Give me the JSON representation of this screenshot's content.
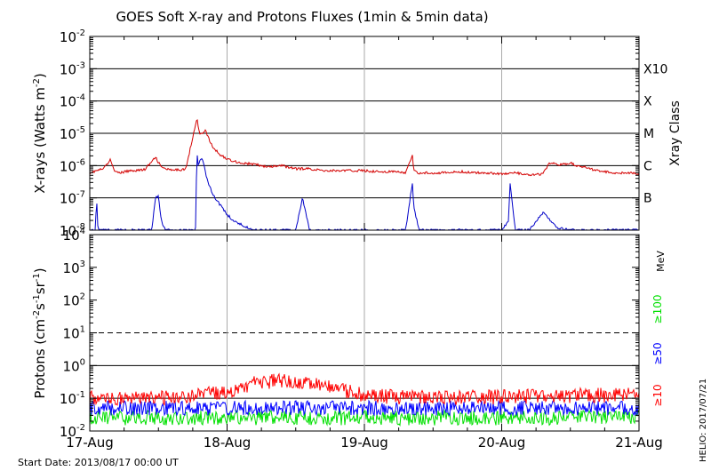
{
  "title": "GOES Soft X-ray and Protons Fluxes   (1min & 5min data)",
  "footer": {
    "start_date": "Start Date: 2013/08/17 00:00 UT",
    "stamp": "HELIO: 2017/07/21"
  },
  "chart_data": [
    {
      "type": "line",
      "panel": "xrays",
      "ylabel": "X-rays (Watts m",
      "ylabel_sup": "-2",
      "ylabel_close": ")",
      "yscale": "log",
      "ylim": [
        1e-08,
        0.01
      ],
      "xlim": [
        "2013-08-17",
        "2013-08-21"
      ],
      "yticks": [
        {
          "base": "10",
          "exp": "-2",
          "value": 0.01
        },
        {
          "base": "10",
          "exp": "-3",
          "value": 0.001
        },
        {
          "base": "10",
          "exp": "-4",
          "value": 0.0001
        },
        {
          "base": "10",
          "exp": "-5",
          "value": 1e-05
        },
        {
          "base": "10",
          "exp": "-6",
          "value": 1e-06
        },
        {
          "base": "10",
          "exp": "-7",
          "value": 1e-07
        },
        {
          "base": "10",
          "exp": "-8",
          "value": 1e-08
        }
      ],
      "gridlines": [
        0.001,
        0.0001,
        1e-05,
        1e-06,
        1e-07
      ],
      "right_axis_title": "Xray Class",
      "right_labels": [
        {
          "label": "X10",
          "value": 0.001
        },
        {
          "label": "X",
          "value": 0.0001
        },
        {
          "label": "M",
          "value": 1e-05
        },
        {
          "label": "C",
          "value": 1e-06
        },
        {
          "label": "B",
          "value": 1e-07
        }
      ],
      "series": [
        {
          "color": "#d40000",
          "x": [
            0,
            0.1,
            0.15,
            0.19,
            0.22,
            0.3,
            0.4,
            0.48,
            0.52,
            0.55,
            0.6,
            0.7,
            0.78,
            0.8,
            0.82,
            0.84,
            0.86,
            0.88,
            0.9,
            0.95,
            1.0,
            1.1,
            1.2,
            1.3,
            1.4,
            1.5,
            1.6,
            1.7,
            1.8,
            1.9,
            2.0,
            2.1,
            2.2,
            2.3,
            2.35,
            2.36,
            2.38,
            2.5,
            2.6,
            2.7,
            2.8,
            2.9,
            3.0,
            3.1,
            3.2,
            3.3,
            3.35,
            3.4,
            3.45,
            3.5,
            3.55,
            3.6,
            3.7,
            3.8,
            3.9,
            4.0
          ],
          "y": [
            6e-07,
            8e-07,
            1.5e-06,
            6e-07,
            6e-07,
            7e-07,
            7.5e-07,
            1.8e-06,
            9e-07,
            8e-07,
            7e-07,
            8e-07,
            3e-05,
            9e-06,
            1e-05,
            1.3e-05,
            8e-06,
            5e-06,
            3.5e-06,
            2.2e-06,
            1.6e-06,
            1.2e-06,
            1.1e-06,
            9e-07,
            1e-06,
            8e-07,
            8e-07,
            7e-07,
            7e-07,
            7e-07,
            7e-07,
            6.5e-07,
            6.5e-07,
            6e-07,
            2e-06,
            7e-07,
            6e-07,
            6e-07,
            6e-07,
            6.5e-07,
            6e-07,
            6e-07,
            5.5e-07,
            6e-07,
            5e-07,
            5.5e-07,
            1.2e-06,
            1.1e-06,
            1.1e-06,
            1.2e-06,
            1e-06,
            9e-07,
            7e-07,
            6e-07,
            6e-07,
            5.5e-07
          ]
        },
        {
          "color": "#0000c8",
          "x": [
            0,
            0.04,
            0.05,
            0.06,
            0.07,
            0.1,
            0.2,
            0.3,
            0.4,
            0.45,
            0.48,
            0.5,
            0.52,
            0.55,
            0.6,
            0.7,
            0.77,
            0.78,
            0.79,
            0.8,
            0.82,
            0.84,
            0.86,
            0.9,
            0.95,
            1.0,
            1.05,
            1.1,
            1.2,
            1.3,
            1.4,
            1.5,
            1.55,
            1.6,
            1.62,
            1.7,
            1.8,
            1.9,
            2.0,
            2.2,
            2.3,
            2.35,
            2.36,
            2.4,
            2.6,
            2.8,
            3.0,
            3.05,
            3.06,
            3.1,
            3.2,
            3.3,
            3.4,
            3.5,
            3.6,
            3.7,
            3.8,
            3.9,
            4.0
          ],
          "y": [
            1e-08,
            1e-08,
            1e-07,
            1e-08,
            1e-08,
            1e-08,
            1e-08,
            1e-08,
            1e-08,
            1e-08,
            1e-07,
            1.1e-07,
            2e-08,
            1e-08,
            1e-08,
            1e-08,
            1e-08,
            3e-06,
            1e-06,
            1.5e-06,
            1.6e-06,
            7e-07,
            3e-07,
            1.2e-07,
            6e-08,
            3e-08,
            2e-08,
            1.5e-08,
            1e-08,
            1e-08,
            1e-08,
            1e-08,
            1e-07,
            1e-08,
            1e-08,
            1e-08,
            1e-08,
            1e-08,
            1e-08,
            1e-08,
            1e-08,
            3e-07,
            5e-08,
            1e-08,
            1e-08,
            1e-08,
            1e-08,
            2e-08,
            3e-07,
            1e-08,
            1e-08,
            3.5e-08,
            1.2e-08,
            1e-08,
            1e-08,
            1e-08,
            1e-08,
            1e-08,
            1e-08
          ]
        }
      ]
    },
    {
      "type": "line",
      "panel": "protons",
      "ylabel": "Protons (cm",
      "ylabel_sup1": "-2",
      "ylabel_mid": "s",
      "ylabel_sup2": "-1",
      "ylabel_mid2": "sr",
      "ylabel_sup3": "-1",
      "ylabel_close": ")",
      "yscale": "log",
      "ylim": [
        0.01,
        10000
      ],
      "xlim": [
        "2013-08-17",
        "2013-08-21"
      ],
      "yticks": [
        {
          "base": "10",
          "exp": "4",
          "value": 10000
        },
        {
          "base": "10",
          "exp": "3",
          "value": 1000
        },
        {
          "base": "10",
          "exp": "2",
          "value": 100
        },
        {
          "base": "10",
          "exp": "1",
          "value": 10
        },
        {
          "base": "10",
          "exp": "0",
          "value": 1
        },
        {
          "base": "10",
          "exp": "-1",
          "value": 0.1
        },
        {
          "base": "10",
          "exp": "-2",
          "value": 0.01
        }
      ],
      "gridlines": [
        1,
        0.1
      ],
      "threshold": 10,
      "xticks": [
        "17-Aug",
        "18-Aug",
        "19-Aug",
        "20-Aug",
        "21-Aug"
      ],
      "right_unit": "MeV",
      "series": [
        {
          "name": "≥10",
          "color": "#ff0000",
          "x": [
            0,
            0.5,
            1.0,
            1.2,
            1.4,
            1.6,
            1.8,
            2.0,
            2.5,
            3.0,
            3.5,
            4.0
          ],
          "y": [
            0.1,
            0.1,
            0.15,
            0.3,
            0.35,
            0.3,
            0.2,
            0.12,
            0.1,
            0.11,
            0.12,
            0.13
          ]
        },
        {
          "name": "≥50",
          "color": "#0000ff",
          "x": [
            0,
            1,
            2,
            3,
            4
          ],
          "y": [
            0.05,
            0.05,
            0.05,
            0.05,
            0.05
          ]
        },
        {
          "name": "≥100",
          "color": "#00e000",
          "x": [
            0,
            1,
            2,
            3,
            4
          ],
          "y": [
            0.025,
            0.025,
            0.025,
            0.025,
            0.025
          ]
        }
      ]
    }
  ]
}
